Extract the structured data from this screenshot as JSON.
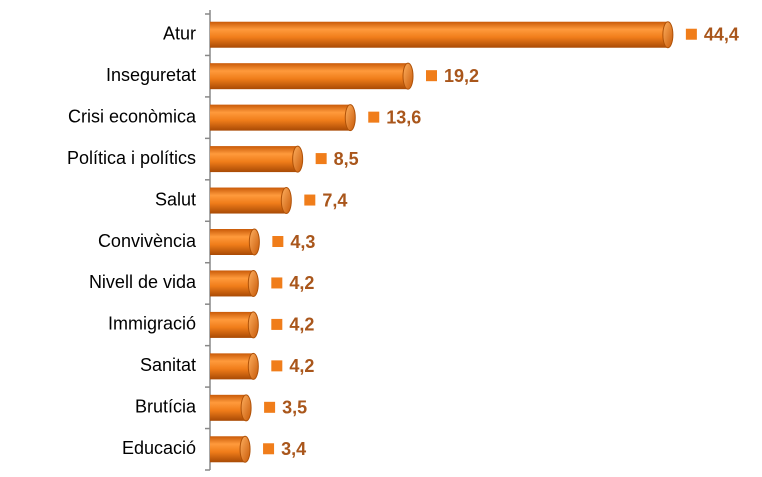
{
  "chart_data": {
    "type": "bar",
    "orientation": "horizontal",
    "categories": [
      "Atur",
      "Inseguretat",
      "Crisi econòmica",
      "Política i polítics",
      "Salut",
      "Convivència",
      "Nivell de vida",
      "Immigració",
      "Sanitat",
      "Brutícia",
      "Educació"
    ],
    "values": [
      44.4,
      19.2,
      13.6,
      8.5,
      7.4,
      4.3,
      4.2,
      4.2,
      4.2,
      3.5,
      3.4
    ],
    "value_labels": [
      "44,4",
      "19,2",
      "13,6",
      "8,5",
      "7,4",
      "4,3",
      "4,2",
      "4,2",
      "4,2",
      "3,5",
      "3,4"
    ],
    "color": "#f07d1a",
    "xlim": [
      0,
      48
    ]
  }
}
